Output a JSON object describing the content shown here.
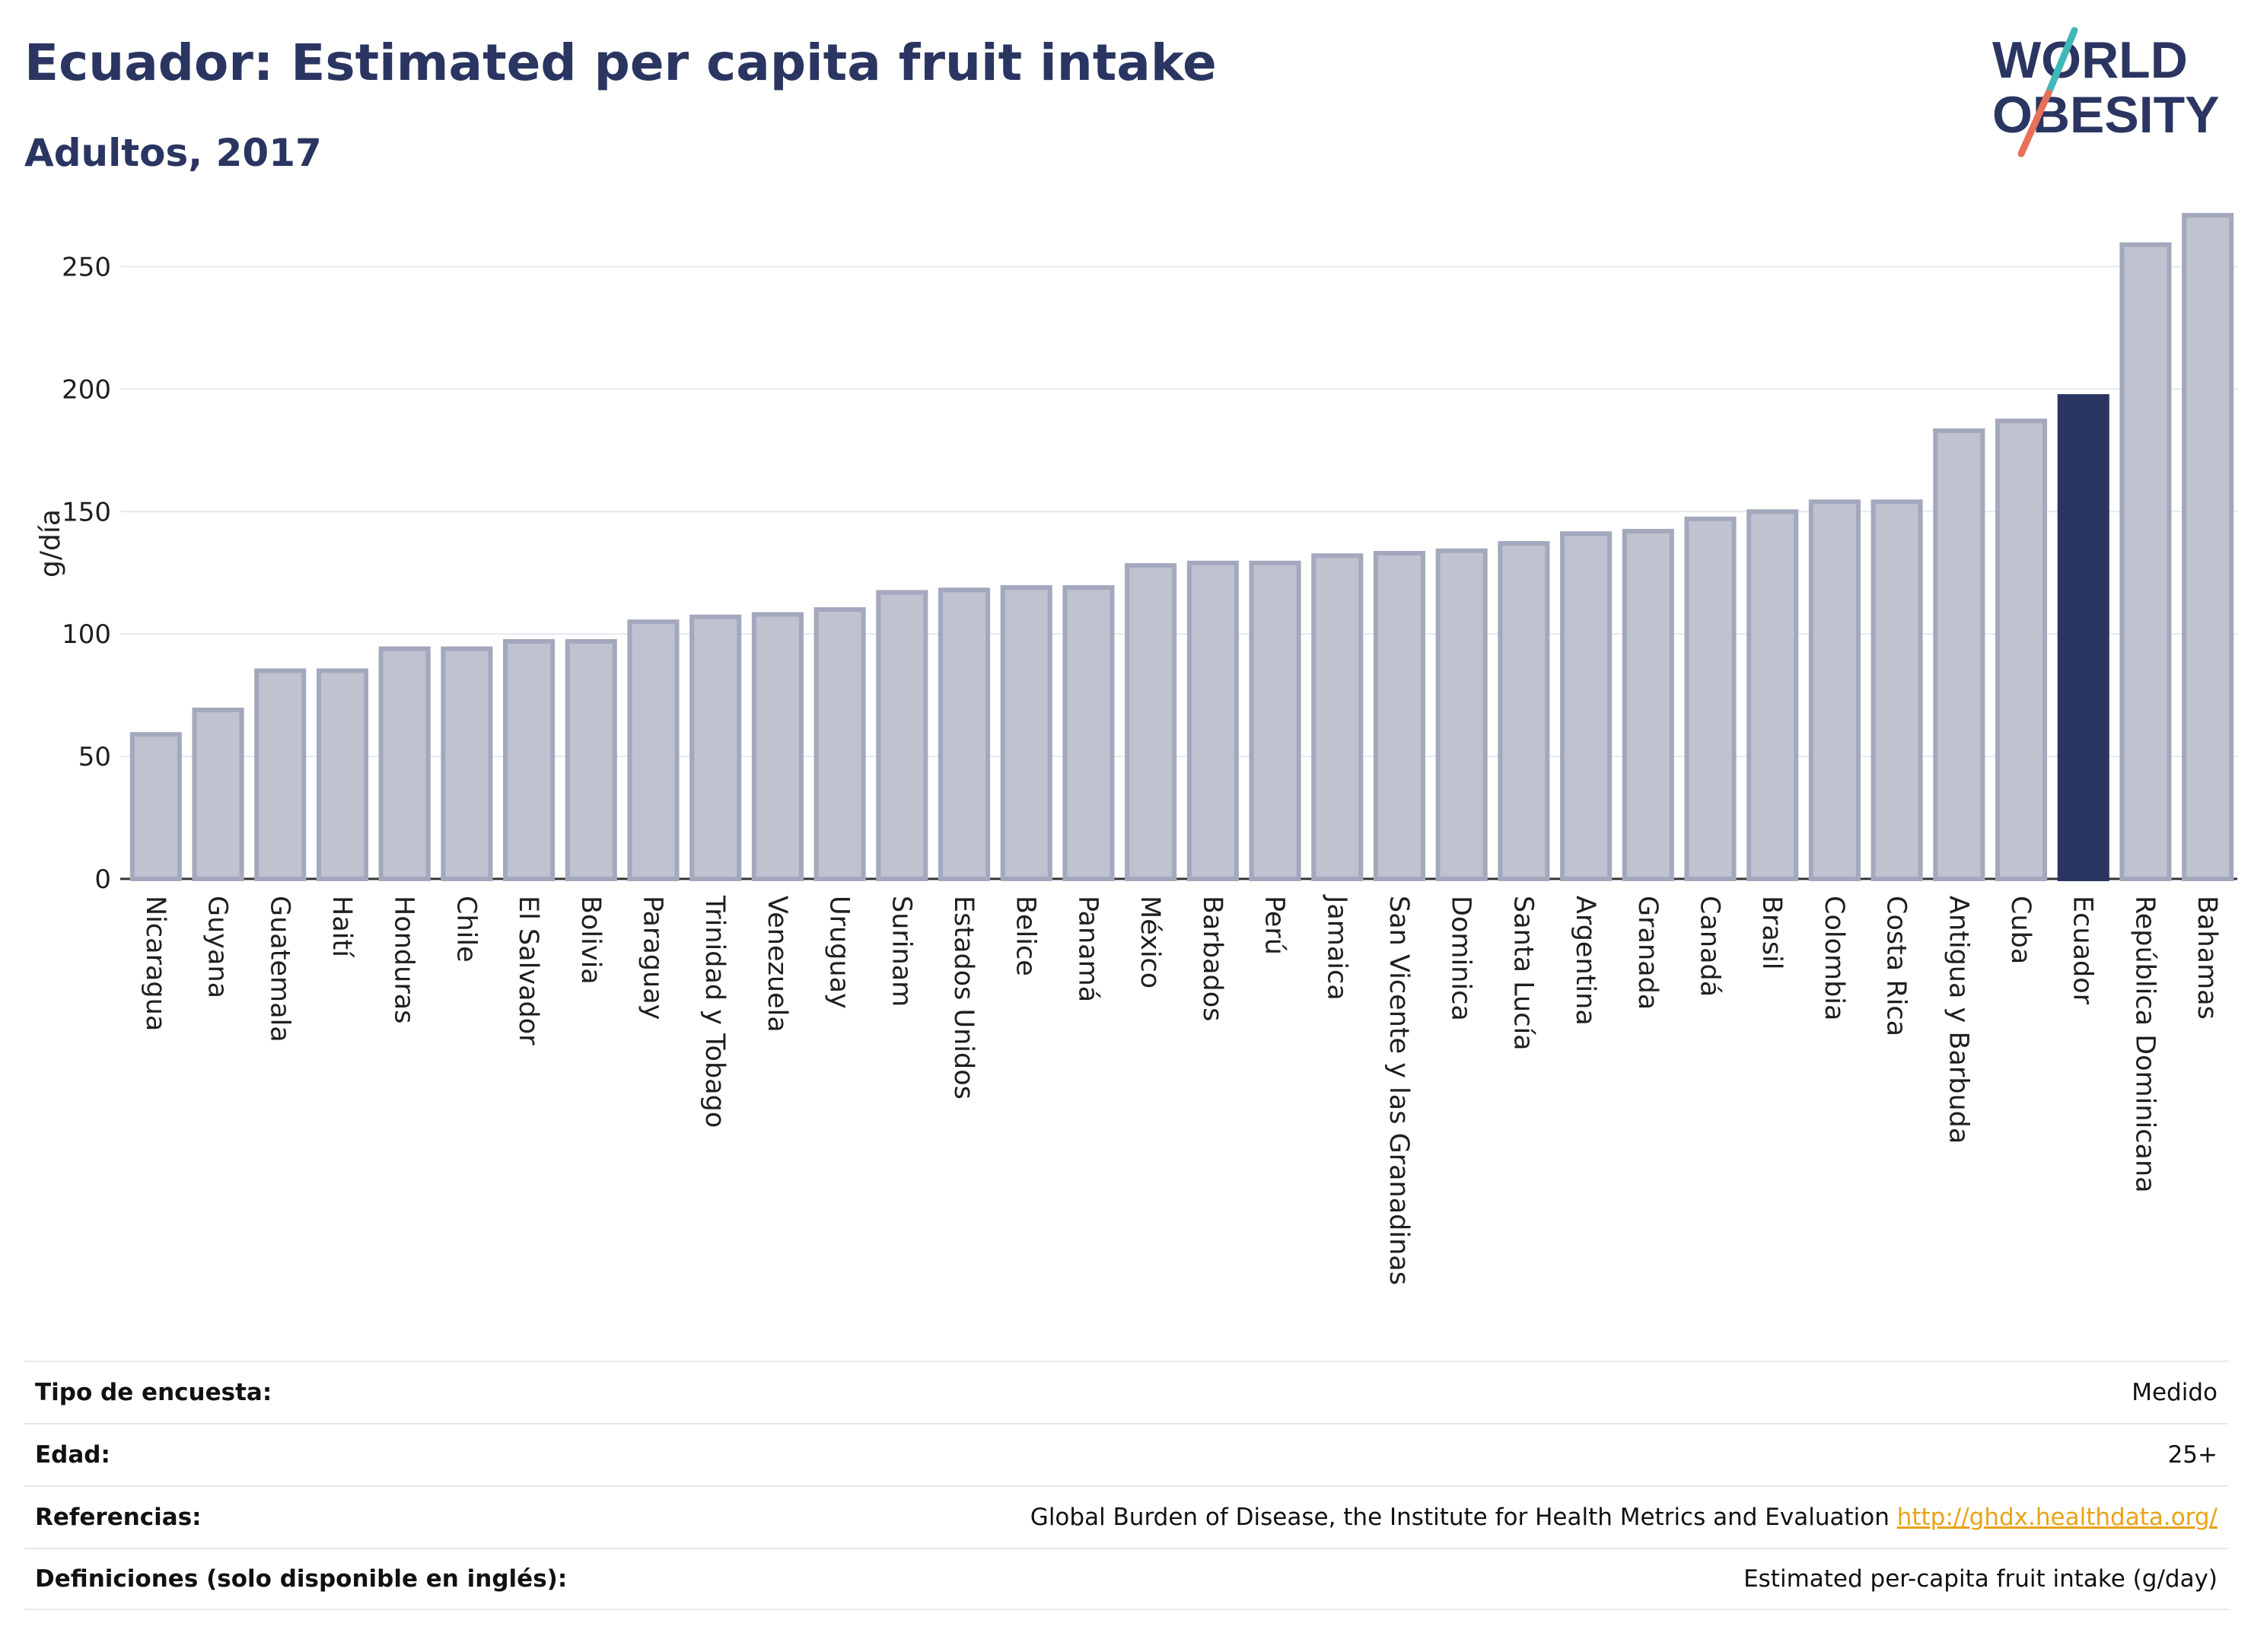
{
  "header": {
    "title": "Ecuador: Estimated per capita fruit intake",
    "subtitle": "Adultos, 2017",
    "logo_line1": "WORLD",
    "logo_line2": "OBESITY"
  },
  "colors": {
    "title": "#2b3561",
    "bar_default": "#bfc2cf",
    "bar_border": "#a3a8bd",
    "bar_highlight": "#2b3561",
    "grid": "#e6e8ee",
    "logo_teal": "#3fb8b8",
    "logo_red": "#e8705a",
    "link": "#e8a317"
  },
  "chart_data": {
    "type": "bar",
    "ylabel": "g/día",
    "xlabel": "",
    "ylim": [
      0,
      275
    ],
    "yticks": [
      0,
      50,
      100,
      150,
      200,
      250
    ],
    "grid": true,
    "highlight": "Ecuador",
    "categories": [
      "Nicaragua",
      "Guyana",
      "Guatemala",
      "Haití",
      "Honduras",
      "Chile",
      "El Salvador",
      "Bolivia",
      "Paraguay",
      "Trinidad y Tobago",
      "Venezuela",
      "Uruguay",
      "Surinam",
      "Estados Unidos",
      "Belice",
      "Panamá",
      "México",
      "Barbados",
      "Perú",
      "Jamaica",
      "San Vicente y las Granadinas",
      "Dominica",
      "Santa Lucía",
      "Argentina",
      "Granada",
      "Canadá",
      "Brasil",
      "Colombia",
      "Costa Rica",
      "Antigua y Barbuda",
      "Cuba",
      "Ecuador",
      "República Dominicana",
      "Bahamas"
    ],
    "values": [
      59,
      69,
      85,
      85,
      94,
      94,
      97,
      97,
      105,
      107,
      108,
      110,
      117,
      118,
      119,
      119,
      128,
      129,
      129,
      132,
      133,
      134,
      137,
      141,
      142,
      147,
      150,
      154,
      154,
      183,
      187,
      197,
      259,
      271
    ]
  },
  "footer": {
    "rows": [
      {
        "label": "Tipo de encuesta:",
        "value": "Medido"
      },
      {
        "label": "Edad:",
        "value": "25+"
      },
      {
        "label": "Referencias:",
        "value": "Global Burden of Disease, the Institute for Health Metrics and Evaluation",
        "link": "http://ghdx.healthdata.org/"
      },
      {
        "label": "Definiciones (solo disponible en inglés):",
        "value": "Estimated per-capita fruit intake (g/day)"
      }
    ]
  }
}
